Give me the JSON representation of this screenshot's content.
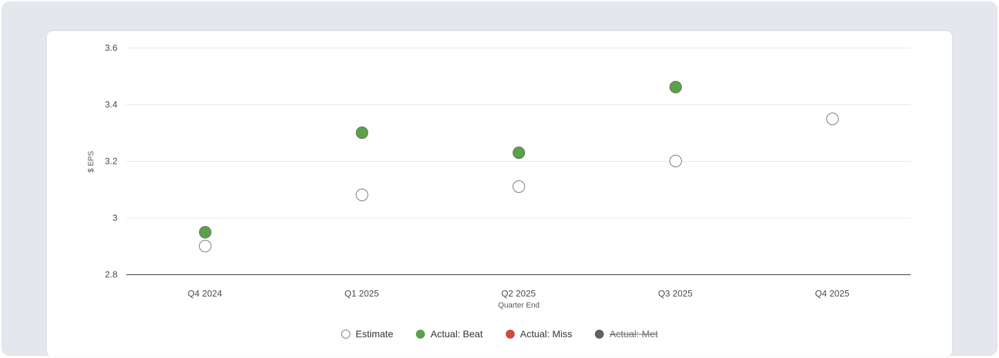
{
  "chart_data": {
    "type": "scatter",
    "title": "",
    "xlabel": "Quarter End",
    "ylabel": "$ EPS",
    "categories": [
      "Q4 2024",
      "Q1 2025",
      "Q2 2025",
      "Q3 2025",
      "Q4 2025"
    ],
    "ylim": [
      2.8,
      3.6
    ],
    "yticks": [
      3.6,
      3.4,
      3.2,
      3.0,
      2.8
    ],
    "ytick_labels": [
      "3.6",
      "3.4",
      "3.2",
      "3",
      "2.8"
    ],
    "grid": "horizontal",
    "legend_position": "bottom-center",
    "series": [
      {
        "name": "Estimate",
        "marker": "hollow",
        "fill_color": "#ffffff",
        "border_color": "#757575",
        "visible": true,
        "values": [
          2.9,
          3.08,
          3.11,
          3.2,
          3.35
        ]
      },
      {
        "name": "Actual: Beat",
        "marker": "filled",
        "fill_color": "#5aa147",
        "border_color": "#6f7070",
        "visible": true,
        "values": [
          2.95,
          3.3,
          3.23,
          3.46,
          null
        ]
      },
      {
        "name": "Actual: Miss",
        "marker": "filled",
        "fill_color": "#cc4c3f",
        "border_color": "#6f7070",
        "visible": true,
        "values": [
          null,
          null,
          null,
          null,
          null
        ]
      },
      {
        "name": "Actual: Met",
        "marker": "filled",
        "fill_color": "#5f6264",
        "border_color": "#5f6264",
        "visible": false,
        "values": [
          null,
          null,
          null,
          null,
          null
        ]
      }
    ],
    "colors": {
      "panel_background": "#e4e8ec",
      "card_background": "#ffffff",
      "gridline": "#e7e7e7",
      "axis_line": "#333333",
      "tick_text": "#4a4a4a",
      "axis_title_text": "#555555",
      "legend_text": "#333333",
      "legend_disabled_text": "#6e6e6e"
    }
  }
}
